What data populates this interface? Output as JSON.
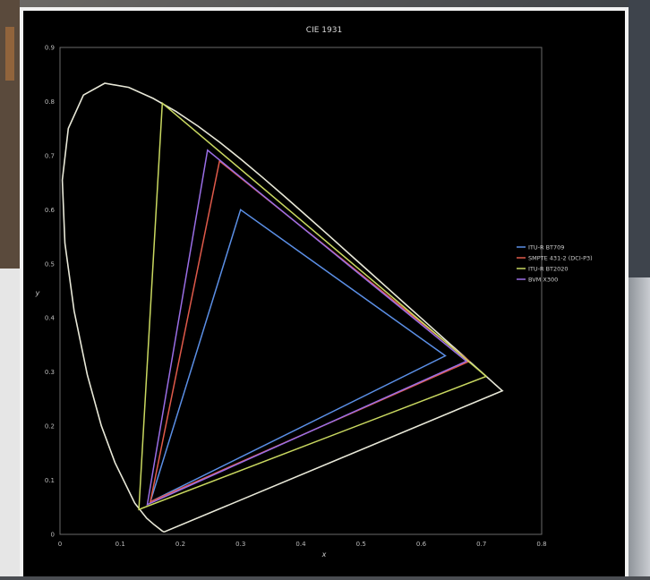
{
  "chart_data": {
    "type": "line",
    "title": "CIE 1931",
    "xlabel": "x",
    "ylabel": "y",
    "xlim": [
      0,
      0.8
    ],
    "ylim": [
      0,
      0.9
    ],
    "x_ticks": [
      "0",
      "0.1",
      "0.2",
      "0.3",
      "0.4",
      "0.5",
      "0.6",
      "0.7",
      "0.8"
    ],
    "y_ticks": [
      "0",
      "0.1",
      "0.2",
      "0.3",
      "0.4",
      "0.5",
      "0.6",
      "0.7",
      "0.8",
      "0.9"
    ],
    "legend_position": "right",
    "spectral_locus": {
      "color": "#e8e8d8",
      "x": [
        0.1741,
        0.1738,
        0.1733,
        0.1726,
        0.1714,
        0.1689,
        0.1644,
        0.1566,
        0.144,
        0.1241,
        0.0913,
        0.0687,
        0.0454,
        0.0235,
        0.0082,
        0.0039,
        0.0139,
        0.0389,
        0.0743,
        0.1142,
        0.1547,
        0.1929,
        0.2296,
        0.2658,
        0.3016,
        0.3373,
        0.3731,
        0.4087,
        0.4441,
        0.4788,
        0.5125,
        0.5448,
        0.5752,
        0.6029,
        0.627,
        0.6482,
        0.6658,
        0.6801,
        0.6915,
        0.7006,
        0.7079,
        0.714,
        0.719,
        0.723,
        0.726,
        0.7283,
        0.73,
        0.7347
      ],
      "y": [
        0.005,
        0.0049,
        0.0048,
        0.0048,
        0.0051,
        0.0069,
        0.0109,
        0.0177,
        0.0297,
        0.0578,
        0.1327,
        0.2007,
        0.295,
        0.4127,
        0.5384,
        0.6548,
        0.7502,
        0.812,
        0.8338,
        0.8262,
        0.8059,
        0.7816,
        0.7543,
        0.7243,
        0.6923,
        0.6589,
        0.6245,
        0.5896,
        0.5547,
        0.5202,
        0.4866,
        0.4544,
        0.4242,
        0.3965,
        0.3725,
        0.3514,
        0.334,
        0.3197,
        0.3083,
        0.2993,
        0.292,
        0.2859,
        0.2809,
        0.277,
        0.274,
        0.2717,
        0.27,
        0.2653
      ]
    },
    "series": [
      {
        "name": "ITU-R BT709",
        "color": "#5b8fe6",
        "x": [
          0.64,
          0.3,
          0.15
        ],
        "y": [
          0.33,
          0.6,
          0.06
        ]
      },
      {
        "name": "SMPTE 431-2 (DCI-P3)",
        "color": "#e05a4a",
        "x": [
          0.68,
          0.265,
          0.15
        ],
        "y": [
          0.32,
          0.69,
          0.06
        ]
      },
      {
        "name": "ITU-R BT2020",
        "color": "#c9d860",
        "x": [
          0.708,
          0.17,
          0.131
        ],
        "y": [
          0.292,
          0.797,
          0.046
        ]
      },
      {
        "name": "BVM X300",
        "color": "#9a6ee6",
        "x": [
          0.675,
          0.245,
          0.145
        ],
        "y": [
          0.32,
          0.71,
          0.055
        ]
      }
    ]
  }
}
